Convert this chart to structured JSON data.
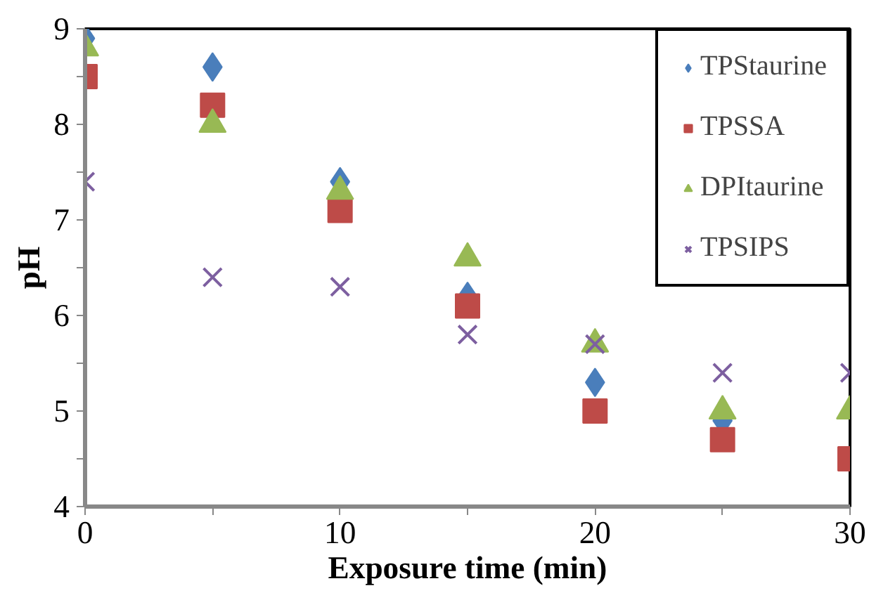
{
  "chart_data": {
    "type": "scatter",
    "xlabel": "Exposure time (min)",
    "ylabel": "pH",
    "x": [
      0,
      5,
      10,
      15,
      20,
      25,
      30
    ],
    "xlim": [
      0,
      30
    ],
    "xticks": [
      0,
      10,
      20,
      30
    ],
    "ylim": [
      4,
      9
    ],
    "yticks": [
      4,
      5,
      6,
      7,
      8,
      9
    ],
    "grid": false,
    "legend": "top right",
    "series": [
      {
        "name": "TPStaurine",
        "color": "#4a7ebb",
        "marker": "diamond",
        "values": [
          8.9,
          8.6,
          7.4,
          6.2,
          5.3,
          4.9,
          null
        ]
      },
      {
        "name": "TPSSA",
        "color": "#be4b48",
        "marker": "square",
        "values": [
          8.5,
          8.2,
          7.1,
          6.1,
          5.0,
          4.7,
          4.5
        ]
      },
      {
        "name": "DPItaurine",
        "color": "#98b954",
        "marker": "triangle",
        "values": [
          8.8,
          8.0,
          7.3,
          6.6,
          5.7,
          5.0,
          5.0
        ]
      },
      {
        "name": "TPSIPS",
        "color": "#7d5fa0",
        "marker": "cross",
        "values": [
          7.4,
          6.4,
          6.3,
          5.8,
          5.7,
          5.4,
          5.4
        ]
      }
    ]
  }
}
